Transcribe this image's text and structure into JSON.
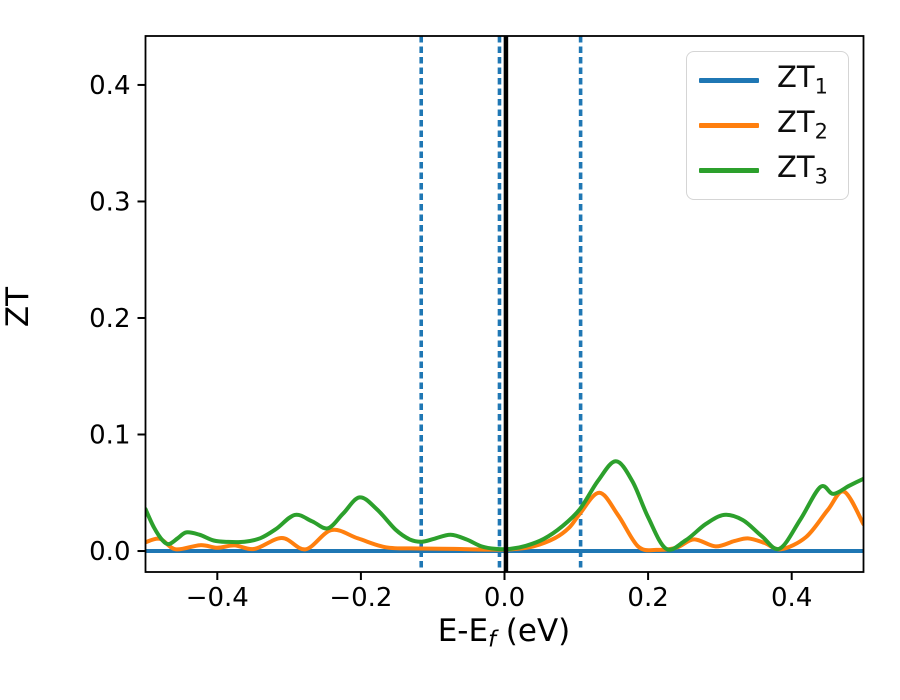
{
  "figure": {
    "ylabel": "ZT",
    "xlabel_parts": {
      "pre": "E-E",
      "sub": "f",
      "post": " (eV)"
    }
  },
  "legend": {
    "items": [
      {
        "base": "ZT",
        "sub": "1",
        "color": "#1f77b4"
      },
      {
        "base": "ZT",
        "sub": "2",
        "color": "#ff7f0e"
      },
      {
        "base": "ZT",
        "sub": "3",
        "color": "#2ca02c"
      }
    ]
  },
  "chart_data": {
    "type": "line",
    "title": "",
    "xlabel": "E-E_f (eV)",
    "ylabel": "ZT",
    "xlim": [
      -0.5,
      0.5
    ],
    "ylim": [
      -0.018,
      0.442
    ],
    "grid": false,
    "legend_position": "upper right",
    "xticks": {
      "values": [
        -0.4,
        -0.2,
        0.0,
        0.2,
        0.4
      ],
      "labels": [
        "−0.4",
        "−0.2",
        "0.0",
        "0.2",
        "0.4"
      ]
    },
    "yticks": {
      "values": [
        0.0,
        0.1,
        0.2,
        0.3,
        0.4
      ],
      "labels": [
        "0.0",
        "0.1",
        "0.2",
        "0.3",
        "0.4"
      ]
    },
    "vlines": [
      {
        "x": -0.116,
        "color": "#1f77b4",
        "style": "dashed"
      },
      {
        "x": -0.007,
        "color": "#1f77b4",
        "style": "dashed"
      },
      {
        "x": 0.106,
        "color": "#1f77b4",
        "style": "dashed"
      },
      {
        "x": 0.002,
        "color": "#000000",
        "style": "solid"
      }
    ],
    "series": [
      {
        "name": "ZT_1",
        "color": "#1f77b4",
        "points": [
          [
            -0.5,
            0.0
          ],
          [
            0.5,
            0.0
          ]
        ]
      },
      {
        "name": "ZT_2",
        "color": "#ff7f0e",
        "points": [
          [
            -0.5,
            0.0075
          ],
          [
            -0.48,
            0.0105
          ],
          [
            -0.458,
            0.0015
          ],
          [
            -0.424,
            0.005
          ],
          [
            -0.4,
            0.0028
          ],
          [
            -0.376,
            0.0048
          ],
          [
            -0.348,
            0.0018
          ],
          [
            -0.31,
            0.0112
          ],
          [
            -0.277,
            0.0015
          ],
          [
            -0.241,
            0.018
          ],
          [
            -0.204,
            0.0108
          ],
          [
            -0.165,
            0.0032
          ],
          [
            -0.12,
            0.0022
          ],
          [
            -0.07,
            0.0018
          ],
          [
            -0.02,
            0.0012
          ],
          [
            0.01,
            0.0015
          ],
          [
            0.04,
            0.004
          ],
          [
            0.07,
            0.011
          ],
          [
            0.09,
            0.02
          ],
          [
            0.105,
            0.032
          ],
          [
            0.132,
            0.05
          ],
          [
            0.158,
            0.031
          ],
          [
            0.186,
            0.004
          ],
          [
            0.212,
            0.001
          ],
          [
            0.24,
            0.003
          ],
          [
            0.264,
            0.01
          ],
          [
            0.294,
            0.004
          ],
          [
            0.32,
            0.0085
          ],
          [
            0.339,
            0.0108
          ],
          [
            0.362,
            0.007
          ],
          [
            0.385,
            0.0015
          ],
          [
            0.42,
            0.012
          ],
          [
            0.45,
            0.035
          ],
          [
            0.473,
            0.051
          ],
          [
            0.5,
            0.023
          ]
        ]
      },
      {
        "name": "ZT_3",
        "color": "#2ca02c",
        "points": [
          [
            -0.5,
            0.036
          ],
          [
            -0.488,
            0.02
          ],
          [
            -0.476,
            0.009
          ],
          [
            -0.467,
            0.006
          ],
          [
            -0.455,
            0.011
          ],
          [
            -0.443,
            0.016
          ],
          [
            -0.425,
            0.014
          ],
          [
            -0.405,
            0.009
          ],
          [
            -0.385,
            0.0078
          ],
          [
            -0.362,
            0.008
          ],
          [
            -0.34,
            0.011
          ],
          [
            -0.318,
            0.019
          ],
          [
            -0.292,
            0.031
          ],
          [
            -0.268,
            0.0255
          ],
          [
            -0.246,
            0.0195
          ],
          [
            -0.225,
            0.032
          ],
          [
            -0.202,
            0.046
          ],
          [
            -0.178,
            0.036
          ],
          [
            -0.152,
            0.0185
          ],
          [
            -0.132,
            0.01
          ],
          [
            -0.115,
            0.008
          ],
          [
            -0.098,
            0.0105
          ],
          [
            -0.075,
            0.014
          ],
          [
            -0.053,
            0.01
          ],
          [
            -0.032,
            0.004
          ],
          [
            -0.012,
            0.0018
          ],
          [
            0.008,
            0.0018
          ],
          [
            0.03,
            0.0045
          ],
          [
            0.055,
            0.0105
          ],
          [
            0.08,
            0.021
          ],
          [
            0.105,
            0.036
          ],
          [
            0.13,
            0.06
          ],
          [
            0.155,
            0.077
          ],
          [
            0.178,
            0.06
          ],
          [
            0.2,
            0.029
          ],
          [
            0.225,
            0.002
          ],
          [
            0.252,
            0.009
          ],
          [
            0.28,
            0.023
          ],
          [
            0.306,
            0.031
          ],
          [
            0.332,
            0.0265
          ],
          [
            0.358,
            0.013
          ],
          [
            0.383,
            0.002
          ],
          [
            0.412,
            0.027
          ],
          [
            0.44,
            0.055
          ],
          [
            0.458,
            0.049
          ],
          [
            0.48,
            0.056
          ],
          [
            0.5,
            0.062
          ]
        ]
      }
    ]
  }
}
